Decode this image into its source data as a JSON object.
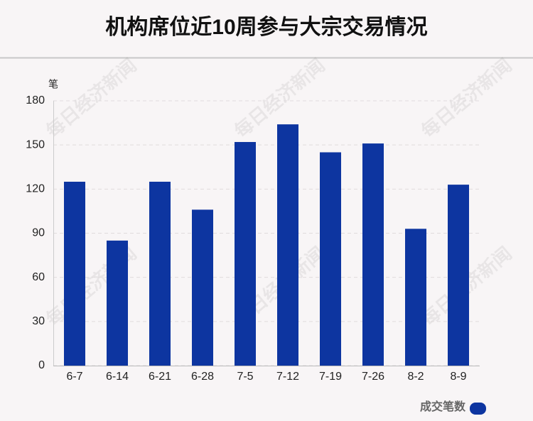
{
  "chart_data": {
    "type": "bar",
    "title": "机构席位近10周参与大宗交易情况",
    "y_label": "笔",
    "categories": [
      "6-7",
      "6-14",
      "6-21",
      "6-28",
      "7-5",
      "7-12",
      "7-19",
      "7-26",
      "8-2",
      "8-9"
    ],
    "series": [
      {
        "name": "成交笔数",
        "color": "#0d35a0",
        "values": [
          125,
          85,
          125,
          106,
          152,
          164,
          145,
          151,
          93,
          123
        ]
      }
    ],
    "ylim": [
      0,
      180
    ],
    "yticks": [
      0,
      30,
      60,
      90,
      120,
      150,
      180
    ],
    "grid": true,
    "legend": "bottom-right"
  },
  "watermark": "每日经济新闻"
}
